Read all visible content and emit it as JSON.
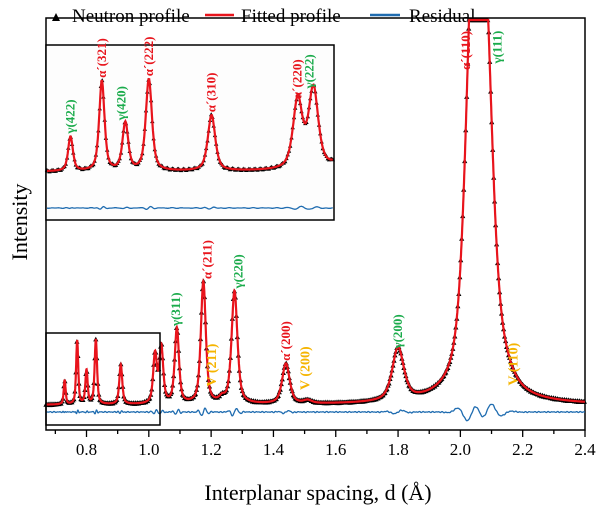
{
  "chart_data": {
    "type": "line",
    "xlabel": "Interplanar spacing, d (Å)",
    "ylabel": "Intensity",
    "xlim": [
      0.67,
      2.4
    ],
    "xticks": [
      "0.8",
      "1.0",
      "1.2",
      "1.4",
      "1.6",
      "1.8",
      "2.0",
      "2.2",
      "2.4"
    ],
    "grid": false,
    "legend_placement": "top",
    "legend": [
      "Neutron profile",
      "Fitted profile",
      "Residual"
    ],
    "colors": {
      "neutron": "#000000",
      "fitted": "#e8141c",
      "residual": "#1f6cb0",
      "alpha": "#e8141c",
      "gamma": "#1aab4b",
      "v": "#f5b400"
    },
    "peaks": [
      {
        "d": 0.73,
        "intensity": 6.5,
        "label": "γ(422)",
        "phase": "gamma"
      },
      {
        "d": 0.77,
        "intensity": 17,
        "label": "α´(321)",
        "phase": "alpha"
      },
      {
        "d": 0.8,
        "intensity": 9,
        "label": "γ(420)",
        "phase": "gamma"
      },
      {
        "d": 0.83,
        "intensity": 17.3,
        "label": "α´(222)",
        "phase": "alpha"
      },
      {
        "d": 0.91,
        "intensity": 10.5,
        "label": "α´(310)",
        "phase": "alpha"
      },
      {
        "d": 1.02,
        "intensity": 13,
        "label": "α´(220)",
        "phase": "alpha"
      },
      {
        "d": 1.04,
        "intensity": 15,
        "label": "γ(222)",
        "phase": "gamma"
      },
      {
        "d": 1.09,
        "intensity": 20,
        "label": "γ(311)",
        "phase": "gamma"
      },
      {
        "d": 1.175,
        "intensity": 32.5,
        "label": "α´(211)",
        "phase": "alpha"
      },
      {
        "d": 1.235,
        "intensity": 1.2,
        "label": "V (211)",
        "phase": "v"
      },
      {
        "d": 1.275,
        "intensity": 30,
        "label": "γ(220)",
        "phase": "gamma"
      },
      {
        "d": 1.44,
        "intensity": 10.7,
        "label": "α´(200)",
        "phase": "alpha"
      },
      {
        "d": 1.51,
        "intensity": 0.8,
        "label": "V (200)",
        "phase": "v"
      },
      {
        "d": 1.8,
        "intensity": 14,
        "label": "γ(200)",
        "phase": "gamma"
      },
      {
        "d": 2.04,
        "intensity": 100,
        "label": "α´(110)",
        "phase": "alpha"
      },
      {
        "d": 2.08,
        "intensity": 90,
        "label": "γ(111)",
        "phase": "gamma"
      },
      {
        "d": 2.145,
        "intensity": 2.5,
        "label": "V (110)",
        "phase": "v"
      }
    ],
    "inset": {
      "xlim": [
        0.7,
        1.065
      ],
      "peak_labels": [
        "γ(422)",
        "α´(321)",
        "γ(420)",
        "α´(222)",
        "α´(310)",
        "α´(220)",
        "γ(222)"
      ]
    }
  }
}
